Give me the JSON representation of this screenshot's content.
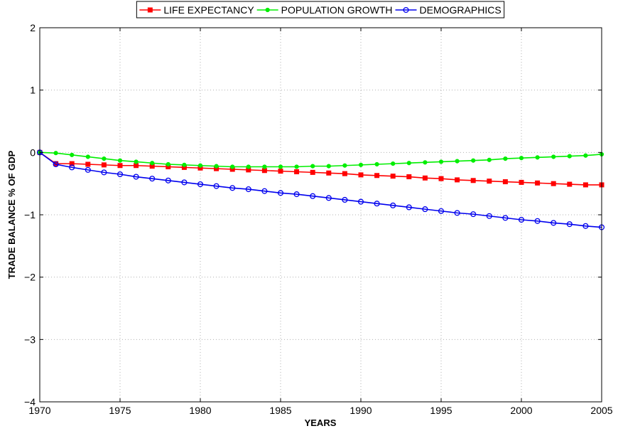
{
  "chart_data": {
    "type": "line",
    "title": "",
    "xlabel": "YEARS",
    "ylabel": "TRADE BALANCE % OF GDP",
    "xlim": [
      1970,
      2005
    ],
    "ylim": [
      -4,
      2
    ],
    "xticks": [
      "1970",
      "1975",
      "1980",
      "1985",
      "1990",
      "1995",
      "2000",
      "2005"
    ],
    "yticks": [
      "2",
      "1",
      "0",
      "−1",
      "−2",
      "−3",
      "−4"
    ],
    "grid": true,
    "legend_position": "top",
    "x": [
      1970,
      1971,
      1972,
      1973,
      1974,
      1975,
      1976,
      1977,
      1978,
      1979,
      1980,
      1981,
      1982,
      1983,
      1984,
      1985,
      1986,
      1987,
      1988,
      1989,
      1990,
      1991,
      1992,
      1993,
      1994,
      1995,
      1996,
      1997,
      1998,
      1999,
      2000,
      2001,
      2002,
      2003,
      2004,
      2005
    ],
    "series": [
      {
        "name": "LIFE EXPECTANCY",
        "color": "#ff0000",
        "marker": "square",
        "values": [
          0,
          -0.18,
          -0.18,
          -0.19,
          -0.2,
          -0.21,
          -0.21,
          -0.22,
          -0.23,
          -0.24,
          -0.25,
          -0.26,
          -0.27,
          -0.28,
          -0.29,
          -0.3,
          -0.31,
          -0.32,
          -0.33,
          -0.34,
          -0.36,
          -0.37,
          -0.38,
          -0.39,
          -0.41,
          -0.42,
          -0.44,
          -0.45,
          -0.46,
          -0.47,
          -0.48,
          -0.49,
          -0.5,
          -0.51,
          -0.52,
          -0.52
        ]
      },
      {
        "name": "POPULATION GROWTH",
        "color": "#00ee00",
        "marker": "dot",
        "values": [
          0,
          -0.01,
          -0.04,
          -0.07,
          -0.1,
          -0.13,
          -0.15,
          -0.17,
          -0.19,
          -0.2,
          -0.21,
          -0.22,
          -0.23,
          -0.23,
          -0.23,
          -0.23,
          -0.23,
          -0.22,
          -0.22,
          -0.21,
          -0.2,
          -0.19,
          -0.18,
          -0.17,
          -0.16,
          -0.15,
          -0.14,
          -0.13,
          -0.12,
          -0.1,
          -0.09,
          -0.08,
          -0.07,
          -0.06,
          -0.05,
          -0.03
        ]
      },
      {
        "name": "DEMOGRAPHICS",
        "color": "#0000ee",
        "marker": "circle",
        "values": [
          0,
          -0.19,
          -0.24,
          -0.28,
          -0.32,
          -0.35,
          -0.39,
          -0.42,
          -0.45,
          -0.48,
          -0.51,
          -0.54,
          -0.57,
          -0.59,
          -0.62,
          -0.65,
          -0.67,
          -0.7,
          -0.73,
          -0.76,
          -0.79,
          -0.82,
          -0.85,
          -0.88,
          -0.91,
          -0.94,
          -0.97,
          -0.99,
          -1.02,
          -1.05,
          -1.08,
          -1.1,
          -1.13,
          -1.15,
          -1.18,
          -1.2
        ]
      }
    ]
  }
}
